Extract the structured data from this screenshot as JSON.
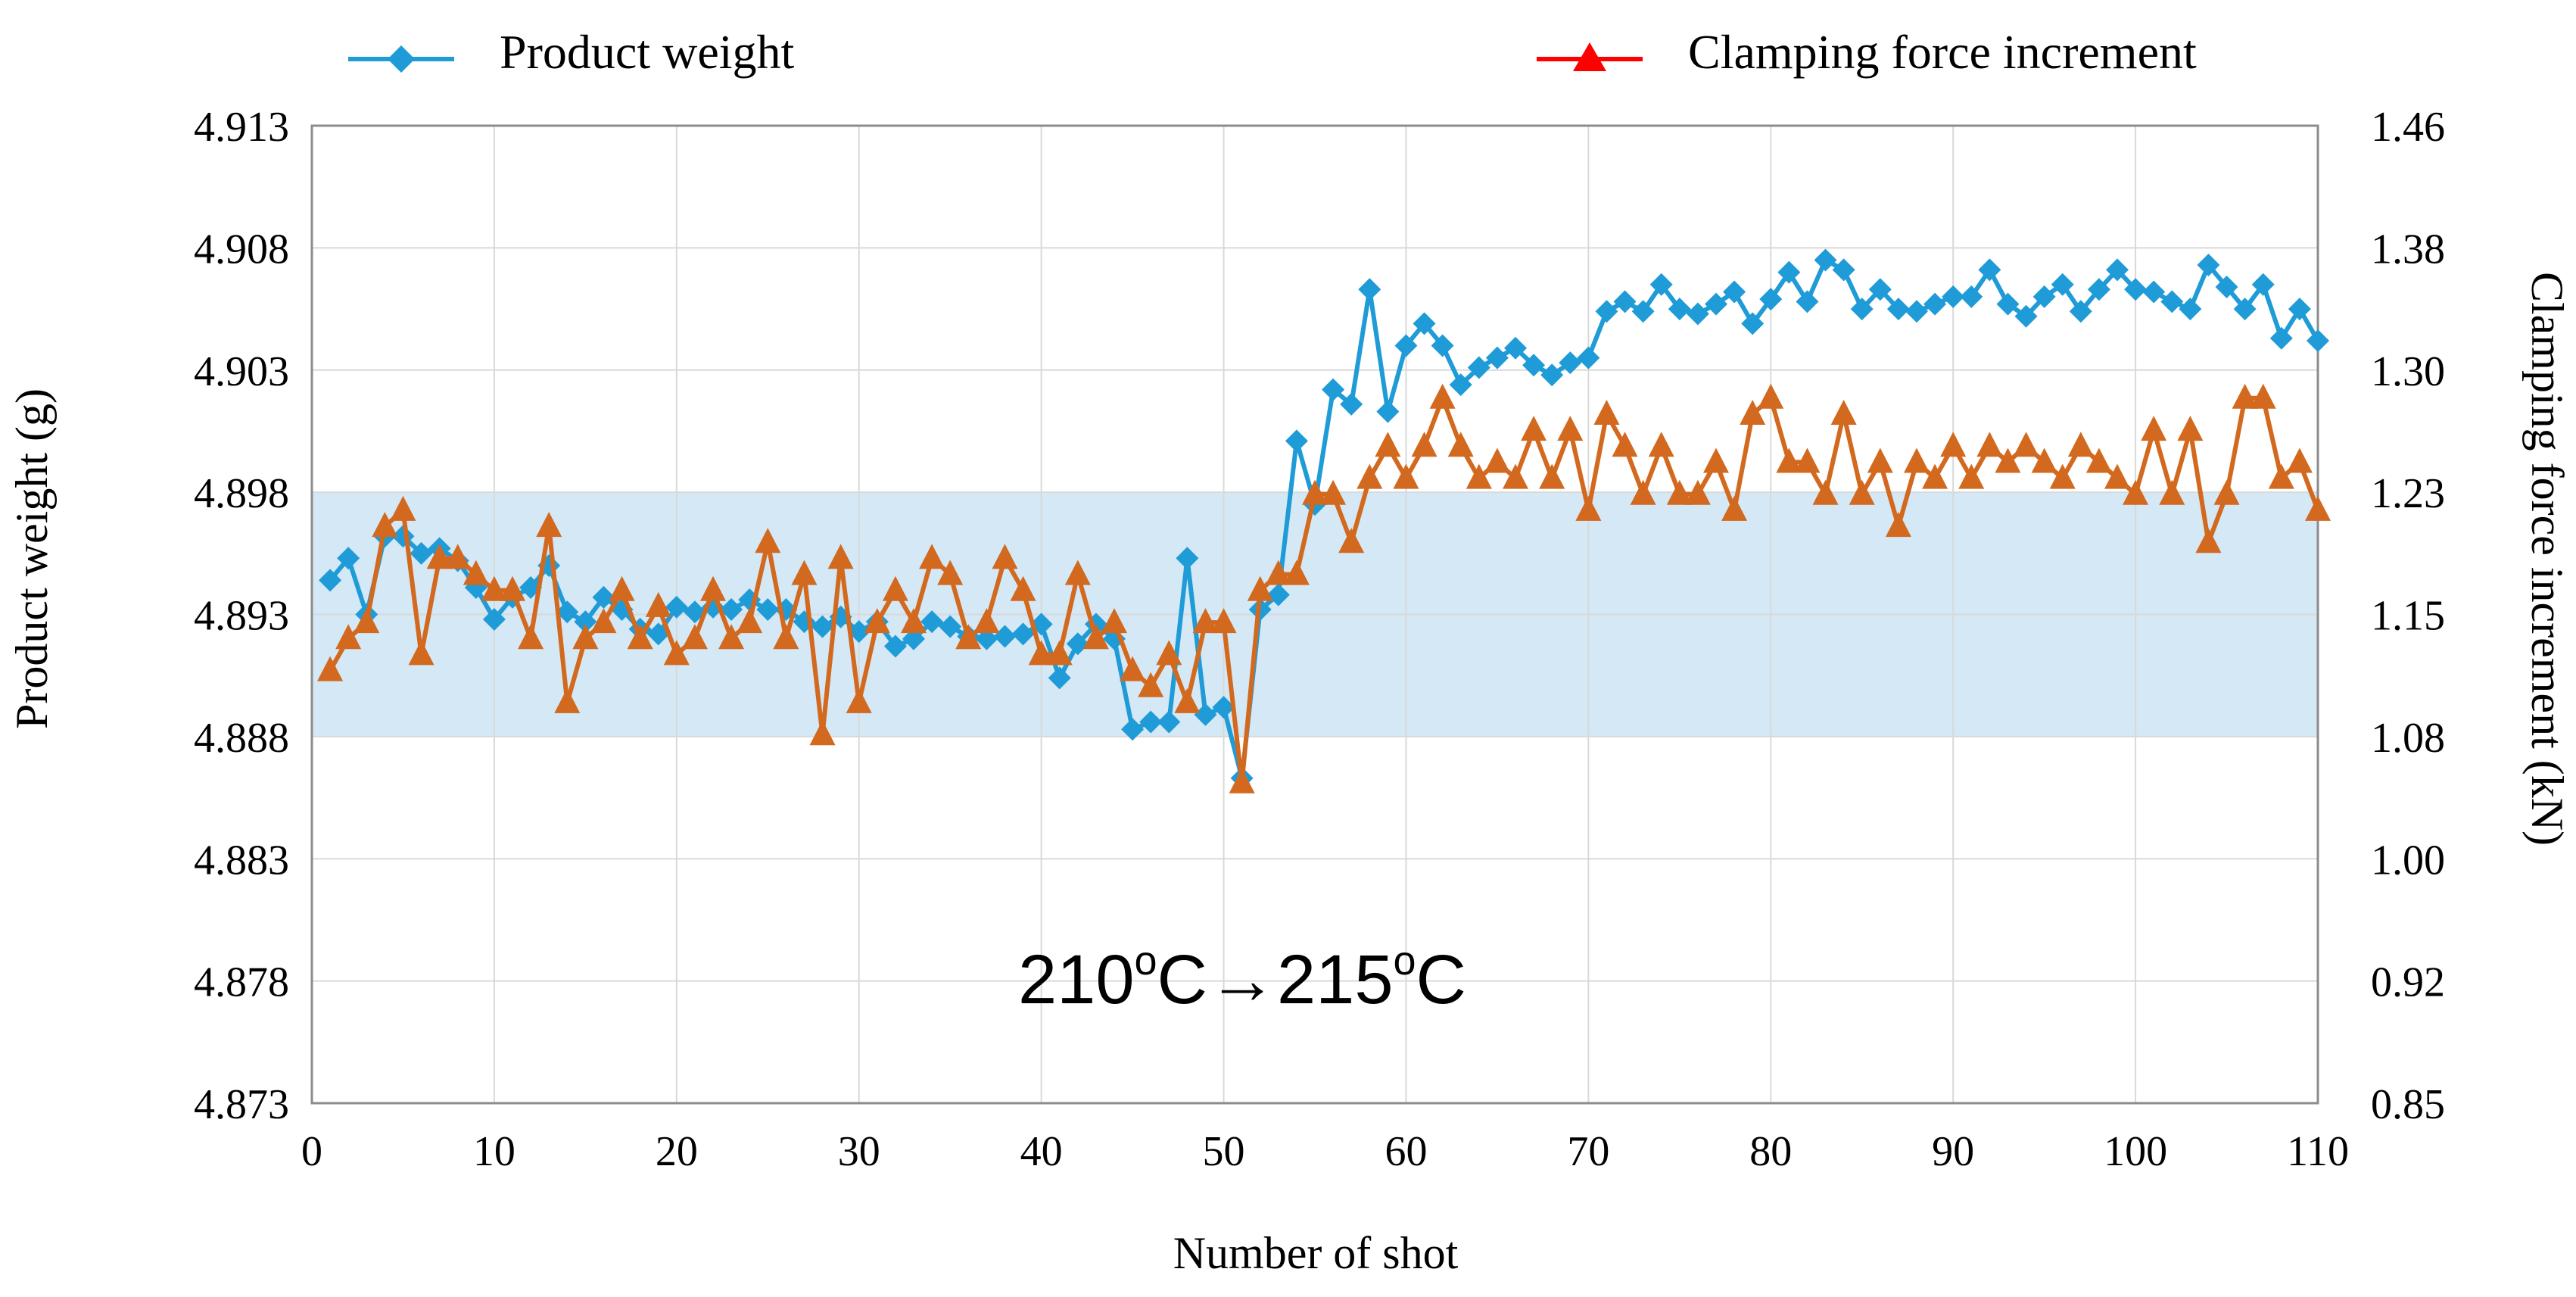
{
  "chart_data": {
    "type": "line",
    "title": "",
    "xlabel": "Number of shot",
    "ylabel_left": "Product weight (g)",
    "ylabel_right": "Clamping force increment (kN)",
    "xlim": [
      0,
      110
    ],
    "ylim_left": [
      4.873,
      4.913
    ],
    "ylim_right": [
      0.85,
      1.46
    ],
    "x_ticks": [
      "0",
      "10",
      "20",
      "30",
      "40",
      "50",
      "60",
      "70",
      "80",
      "90",
      "100",
      "110"
    ],
    "y_left_ticks": [
      "4.913",
      "4.908",
      "4.903",
      "4.898",
      "4.893",
      "4.888",
      "4.883",
      "4.878",
      "4.873"
    ],
    "y_right_ticks": [
      "1.46",
      "1.38",
      "1.30",
      "1.23",
      "1.15",
      "1.08",
      "1.00",
      "0.92",
      "0.85"
    ],
    "grid": true,
    "band_left": [
      4.888,
      4.898
    ],
    "annotation": {
      "base": "210",
      "sup1": "o",
      "mid": "C→215",
      "sup2": "o",
      "end": "C",
      "full": "210oC→215oC"
    },
    "legend_position": "top",
    "colors": {
      "weight": "#1f9bd7",
      "clamp": "#d2691e",
      "clamp_legend": "#ff0000",
      "band": "#cfe5f5",
      "grid": "#d9d9d9"
    },
    "series": [
      {
        "name": "Product weight",
        "axis": "left",
        "marker": "diamond",
        "x": [
          1,
          2,
          3,
          4,
          5,
          6,
          7,
          8,
          9,
          10,
          11,
          12,
          13,
          14,
          15,
          16,
          17,
          18,
          19,
          20,
          21,
          22,
          23,
          24,
          25,
          26,
          27,
          28,
          29,
          30,
          31,
          32,
          33,
          34,
          35,
          36,
          37,
          38,
          39,
          40,
          41,
          42,
          43,
          44,
          45,
          46,
          47,
          48,
          49,
          50,
          51,
          52,
          53,
          54,
          55,
          56,
          57,
          58,
          59,
          60,
          61,
          62,
          63,
          64,
          65,
          66,
          67,
          68,
          69,
          70,
          71,
          72,
          73,
          74,
          75,
          76,
          77,
          78,
          79,
          80,
          81,
          82,
          83,
          84,
          85,
          86,
          87,
          88,
          89,
          90,
          91,
          92,
          93,
          94,
          95,
          96,
          97,
          98,
          99,
          100,
          101,
          102,
          103,
          104,
          105,
          106,
          107,
          108,
          109,
          110
        ],
        "values": [
          4.8944,
          4.8953,
          4.893,
          4.8962,
          4.8962,
          4.8955,
          4.8957,
          4.8952,
          4.8941,
          4.8928,
          4.8937,
          4.8941,
          4.895,
          4.8931,
          4.8927,
          4.8937,
          4.8932,
          4.8924,
          4.8922,
          4.8933,
          4.8931,
          4.8933,
          4.8932,
          4.8936,
          4.8932,
          4.8932,
          4.8927,
          4.8925,
          4.8929,
          4.8923,
          4.8927,
          4.8917,
          4.892,
          4.8927,
          4.8925,
          4.8921,
          4.892,
          4.8921,
          4.8922,
          4.8926,
          4.8904,
          4.8918,
          4.8926,
          4.892,
          4.8883,
          4.8886,
          4.8886,
          4.8953,
          4.8889,
          4.8892,
          4.8863,
          4.8932,
          4.8938,
          4.9001,
          4.8975,
          4.9022,
          4.9016,
          4.9063,
          4.9013,
          4.904,
          4.9049,
          4.904,
          4.9024,
          4.9031,
          4.9035,
          4.9039,
          4.9032,
          4.9028,
          4.9033,
          4.9035,
          4.9054,
          4.9058,
          4.9054,
          4.9065,
          4.9055,
          4.9053,
          4.9057,
          4.9062,
          4.9049,
          4.9059,
          4.907,
          4.9058,
          4.9075,
          4.9071,
          4.9055,
          4.9063,
          4.9055,
          4.9054,
          4.9057,
          4.906,
          4.906,
          4.9071,
          4.9057,
          4.9052,
          4.906,
          4.9065,
          4.9054,
          4.9063,
          4.9071,
          4.9063,
          4.9062,
          4.9058,
          4.9055,
          4.9073,
          4.9064,
          4.9055,
          4.9065,
          4.9043,
          4.9055,
          4.9042
        ]
      },
      {
        "name": "Clamping force increment",
        "axis": "right",
        "marker": "triangle",
        "x": [
          1,
          2,
          3,
          4,
          5,
          6,
          7,
          8,
          9,
          10,
          11,
          12,
          13,
          14,
          15,
          16,
          17,
          18,
          19,
          20,
          21,
          22,
          23,
          24,
          25,
          26,
          27,
          28,
          29,
          30,
          31,
          32,
          33,
          34,
          35,
          36,
          37,
          38,
          39,
          40,
          41,
          42,
          43,
          44,
          45,
          46,
          47,
          48,
          49,
          50,
          51,
          52,
          53,
          54,
          55,
          56,
          57,
          58,
          59,
          60,
          61,
          62,
          63,
          64,
          65,
          66,
          67,
          68,
          69,
          70,
          71,
          72,
          73,
          74,
          75,
          76,
          77,
          78,
          79,
          80,
          81,
          82,
          83,
          84,
          85,
          86,
          87,
          88,
          89,
          90,
          91,
          92,
          93,
          94,
          95,
          96,
          97,
          98,
          99,
          100,
          101,
          102,
          103,
          104,
          105,
          106,
          107,
          108,
          109,
          110
        ],
        "values": [
          1.12,
          1.14,
          1.15,
          1.21,
          1.22,
          1.13,
          1.19,
          1.19,
          1.18,
          1.17,
          1.17,
          1.14,
          1.21,
          1.1,
          1.14,
          1.15,
          1.17,
          1.14,
          1.16,
          1.13,
          1.14,
          1.17,
          1.14,
          1.15,
          1.2,
          1.14,
          1.18,
          1.08,
          1.19,
          1.1,
          1.15,
          1.17,
          1.15,
          1.19,
          1.18,
          1.14,
          1.15,
          1.19,
          1.17,
          1.13,
          1.13,
          1.18,
          1.14,
          1.15,
          1.12,
          1.11,
          1.13,
          1.1,
          1.15,
          1.15,
          1.05,
          1.17,
          1.18,
          1.18,
          1.23,
          1.23,
          1.2,
          1.24,
          1.26,
          1.24,
          1.26,
          1.29,
          1.26,
          1.24,
          1.25,
          1.24,
          1.27,
          1.24,
          1.27,
          1.22,
          1.28,
          1.26,
          1.23,
          1.26,
          1.23,
          1.23,
          1.25,
          1.22,
          1.28,
          1.29,
          1.25,
          1.25,
          1.23,
          1.28,
          1.23,
          1.25,
          1.21,
          1.25,
          1.24,
          1.26,
          1.24,
          1.26,
          1.25,
          1.26,
          1.25,
          1.24,
          1.26,
          1.25,
          1.24,
          1.23,
          1.27,
          1.23,
          1.27,
          1.2,
          1.23,
          1.29,
          1.29,
          1.24,
          1.25,
          1.22
        ]
      }
    ]
  }
}
